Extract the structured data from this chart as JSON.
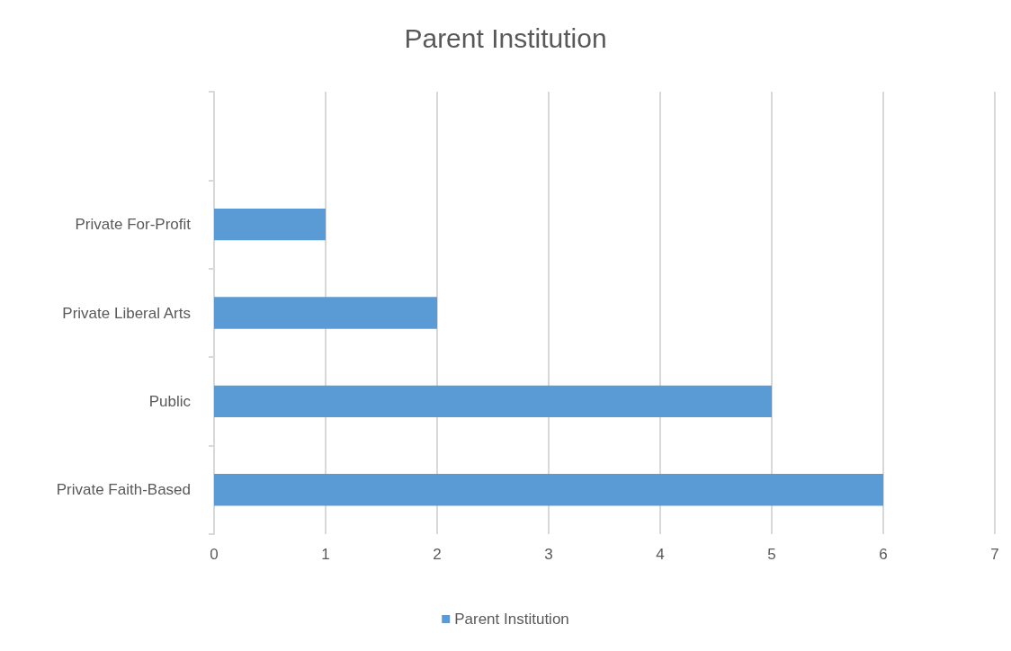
{
  "chart_data": {
    "type": "bar",
    "orientation": "horizontal",
    "title": "Parent Institution",
    "categories": [
      null,
      "Private For-Profit",
      "Private Liberal Arts",
      "Public",
      "Private Faith-Based"
    ],
    "series": [
      {
        "name": "Parent Institution",
        "color": "#5b9bd5",
        "values": [
          null,
          1,
          2,
          5,
          6
        ]
      }
    ],
    "xlim": [
      0,
      7
    ],
    "xticks": [
      0,
      1,
      2,
      3,
      4,
      5,
      6,
      7
    ],
    "grid": "x",
    "legend": "bottom"
  }
}
